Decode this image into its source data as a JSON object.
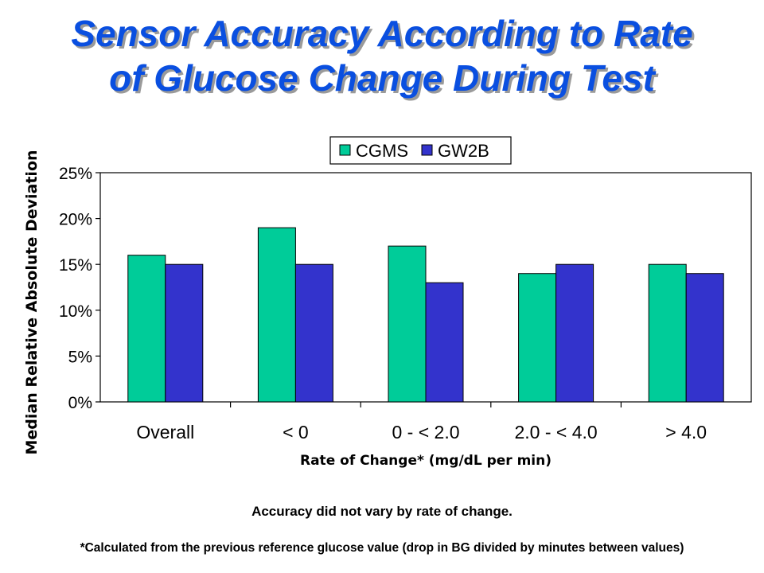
{
  "title_lines": [
    "Sensor Accuracy According to Rate",
    "of Glucose Change During Test"
  ],
  "chart_data": {
    "type": "bar",
    "categories": [
      "Overall",
      "< 0",
      "0 - < 2.0",
      "2.0 - < 4.0",
      "> 4.0"
    ],
    "series": [
      {
        "name": "CGMS",
        "values": [
          16,
          19,
          17,
          14,
          15
        ],
        "color": "#00cc99"
      },
      {
        "name": "GW2B",
        "values": [
          15,
          15,
          13,
          15,
          14
        ],
        "color": "#3333cc"
      }
    ],
    "title": "",
    "xlabel": "Rate of Change* (mg/dL per min)",
    "ylabel": "Median Relative Absolute Deviation",
    "ylim": [
      0,
      25
    ],
    "yticks": [
      "0%",
      "5%",
      "10%",
      "15%",
      "20%",
      "25%"
    ],
    "ytick_values": [
      0,
      5,
      10,
      15,
      20,
      25
    ],
    "legend_position": "top",
    "grid": false
  },
  "notes": {
    "summary": "Accuracy did not vary by rate of change.",
    "footnote": "*Calculated from the previous reference glucose value (drop in BG divided by minutes between values)"
  }
}
